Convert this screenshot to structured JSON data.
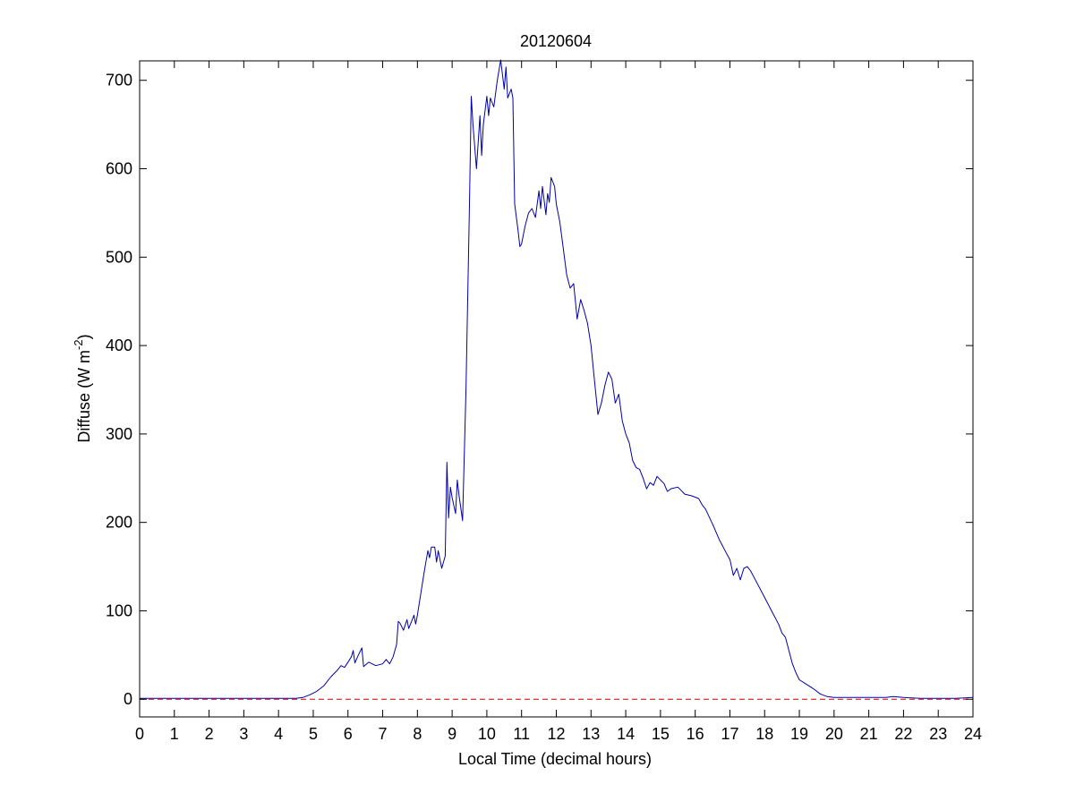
{
  "chart_data": {
    "type": "line",
    "title": "20120604",
    "xlabel": "Local Time (decimal hours)",
    "ylabel_parts": [
      "Diffuse (W m",
      "-2",
      ")"
    ],
    "xlim": [
      0,
      24
    ],
    "ylim": [
      -20,
      722
    ],
    "xticks": [
      0,
      1,
      2,
      3,
      4,
      5,
      6,
      7,
      8,
      9,
      10,
      11,
      12,
      13,
      14,
      15,
      16,
      17,
      18,
      19,
      20,
      21,
      22,
      23,
      24
    ],
    "yticks": [
      0,
      100,
      200,
      300,
      400,
      500,
      600,
      700
    ],
    "grid": false,
    "series": [
      {
        "color": "#0000aa",
        "style": "solid",
        "points": [
          [
            0,
            1
          ],
          [
            4.5,
            1
          ],
          [
            4.7,
            2
          ],
          [
            4.9,
            5
          ],
          [
            5.1,
            9
          ],
          [
            5.3,
            15
          ],
          [
            5.5,
            25
          ],
          [
            5.7,
            33
          ],
          [
            5.8,
            38
          ],
          [
            5.9,
            36
          ],
          [
            6.0,
            42
          ],
          [
            6.1,
            48
          ],
          [
            6.15,
            55
          ],
          [
            6.2,
            41
          ],
          [
            6.3,
            50
          ],
          [
            6.4,
            58
          ],
          [
            6.45,
            37
          ],
          [
            6.6,
            42
          ],
          [
            6.8,
            38
          ],
          [
            7.0,
            40
          ],
          [
            7.1,
            45
          ],
          [
            7.2,
            40
          ],
          [
            7.3,
            48
          ],
          [
            7.4,
            62
          ],
          [
            7.45,
            88
          ],
          [
            7.5,
            86
          ],
          [
            7.6,
            78
          ],
          [
            7.7,
            90
          ],
          [
            7.75,
            80
          ],
          [
            7.8,
            85
          ],
          [
            7.9,
            95
          ],
          [
            7.95,
            85
          ],
          [
            8.0,
            95
          ],
          [
            8.1,
            120
          ],
          [
            8.2,
            145
          ],
          [
            8.3,
            168
          ],
          [
            8.35,
            160
          ],
          [
            8.4,
            172
          ],
          [
            8.5,
            172
          ],
          [
            8.55,
            155
          ],
          [
            8.6,
            168
          ],
          [
            8.7,
            148
          ],
          [
            8.8,
            162
          ],
          [
            8.85,
            268
          ],
          [
            8.9,
            205
          ],
          [
            8.95,
            240
          ],
          [
            9.0,
            228
          ],
          [
            9.1,
            210
          ],
          [
            9.15,
            248
          ],
          [
            9.2,
            230
          ],
          [
            9.3,
            202
          ],
          [
            9.4,
            350
          ],
          [
            9.5,
            560
          ],
          [
            9.55,
            682
          ],
          [
            9.6,
            650
          ],
          [
            9.7,
            600
          ],
          [
            9.8,
            660
          ],
          [
            9.85,
            615
          ],
          [
            9.9,
            650
          ],
          [
            10.0,
            682
          ],
          [
            10.05,
            660
          ],
          [
            10.1,
            680
          ],
          [
            10.2,
            670
          ],
          [
            10.3,
            700
          ],
          [
            10.4,
            723
          ],
          [
            10.5,
            690
          ],
          [
            10.55,
            715
          ],
          [
            10.6,
            680
          ],
          [
            10.7,
            690
          ],
          [
            10.75,
            680
          ],
          [
            10.8,
            560
          ],
          [
            10.9,
            530
          ],
          [
            10.95,
            512
          ],
          [
            11.0,
            515
          ],
          [
            11.1,
            535
          ],
          [
            11.2,
            550
          ],
          [
            11.3,
            555
          ],
          [
            11.4,
            545
          ],
          [
            11.5,
            575
          ],
          [
            11.55,
            555
          ],
          [
            11.6,
            580
          ],
          [
            11.7,
            548
          ],
          [
            11.75,
            572
          ],
          [
            11.8,
            562
          ],
          [
            11.85,
            590
          ],
          [
            11.95,
            580
          ],
          [
            12.0,
            560
          ],
          [
            12.1,
            540
          ],
          [
            12.2,
            510
          ],
          [
            12.3,
            480
          ],
          [
            12.4,
            465
          ],
          [
            12.5,
            470
          ],
          [
            12.6,
            430
          ],
          [
            12.7,
            452
          ],
          [
            12.8,
            440
          ],
          [
            12.9,
            425
          ],
          [
            13.0,
            400
          ],
          [
            13.1,
            360
          ],
          [
            13.2,
            322
          ],
          [
            13.3,
            335
          ],
          [
            13.4,
            355
          ],
          [
            13.5,
            370
          ],
          [
            13.6,
            362
          ],
          [
            13.7,
            335
          ],
          [
            13.8,
            345
          ],
          [
            13.9,
            315
          ],
          [
            14.0,
            300
          ],
          [
            14.1,
            290
          ],
          [
            14.2,
            270
          ],
          [
            14.3,
            262
          ],
          [
            14.4,
            260
          ],
          [
            14.5,
            250
          ],
          [
            14.6,
            238
          ],
          [
            14.7,
            245
          ],
          [
            14.8,
            242
          ],
          [
            14.9,
            252
          ],
          [
            15.0,
            248
          ],
          [
            15.1,
            244
          ],
          [
            15.2,
            235
          ],
          [
            15.3,
            238
          ],
          [
            15.5,
            240
          ],
          [
            15.7,
            232
          ],
          [
            15.9,
            230
          ],
          [
            16.1,
            227
          ],
          [
            16.2,
            220
          ],
          [
            16.3,
            215
          ],
          [
            16.5,
            198
          ],
          [
            16.7,
            180
          ],
          [
            16.9,
            165
          ],
          [
            17.0,
            158
          ],
          [
            17.1,
            140
          ],
          [
            17.2,
            148
          ],
          [
            17.3,
            135
          ],
          [
            17.4,
            148
          ],
          [
            17.5,
            150
          ],
          [
            17.6,
            145
          ],
          [
            17.8,
            130
          ],
          [
            18.0,
            115
          ],
          [
            18.2,
            100
          ],
          [
            18.4,
            85
          ],
          [
            18.5,
            75
          ],
          [
            18.6,
            70
          ],
          [
            18.7,
            55
          ],
          [
            18.8,
            40
          ],
          [
            18.9,
            30
          ],
          [
            19.0,
            22
          ],
          [
            19.2,
            17
          ],
          [
            19.4,
            12
          ],
          [
            19.6,
            6
          ],
          [
            19.8,
            3
          ],
          [
            20.0,
            2
          ],
          [
            20.5,
            2
          ],
          [
            21.0,
            2
          ],
          [
            21.5,
            2
          ],
          [
            21.7,
            3
          ],
          [
            22.0,
            2
          ],
          [
            22.5,
            1
          ],
          [
            23.0,
            1
          ],
          [
            23.5,
            1
          ],
          [
            24.0,
            2
          ]
        ]
      },
      {
        "color": "#d00000",
        "style": "dashed",
        "points": [
          [
            0,
            0
          ],
          [
            24,
            0
          ]
        ]
      }
    ]
  }
}
